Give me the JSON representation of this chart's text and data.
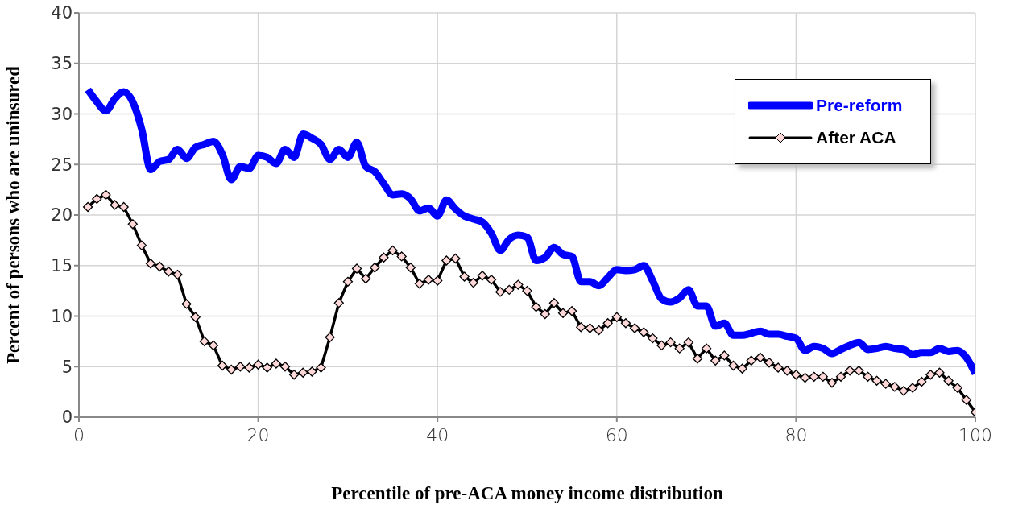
{
  "chart_data": {
    "type": "line",
    "xlabel": "Percentile of pre-ACA money income distribution",
    "ylabel": "Percent of persons who are uninsured",
    "x": [
      1,
      2,
      3,
      4,
      5,
      6,
      7,
      8,
      9,
      10,
      11,
      12,
      13,
      14,
      15,
      16,
      17,
      18,
      19,
      20,
      21,
      22,
      23,
      24,
      25,
      26,
      27,
      28,
      29,
      30,
      31,
      32,
      33,
      34,
      35,
      36,
      37,
      38,
      39,
      40,
      41,
      42,
      43,
      44,
      45,
      46,
      47,
      48,
      49,
      50,
      51,
      52,
      53,
      54,
      55,
      56,
      57,
      58,
      59,
      60,
      61,
      62,
      63,
      64,
      65,
      66,
      67,
      68,
      69,
      70,
      71,
      72,
      73,
      74,
      75,
      76,
      77,
      78,
      79,
      80,
      81,
      82,
      83,
      84,
      85,
      86,
      87,
      88,
      89,
      90,
      91,
      92,
      93,
      94,
      95,
      96,
      97,
      98,
      99,
      100
    ],
    "series": [
      {
        "name": "Pre-reform",
        "color": "#0000ff",
        "marker": "none",
        "values": [
          32.4,
          31.2,
          30.3,
          31.5,
          32.2,
          31.2,
          28.5,
          24.5,
          25.3,
          25.5,
          26.5,
          25.6,
          26.7,
          27.0,
          27.3,
          26.0,
          23.5,
          24.8,
          24.6,
          25.9,
          25.7,
          25.1,
          26.5,
          25.7,
          28.0,
          27.6,
          27.0,
          25.5,
          26.5,
          25.7,
          27.2,
          24.8,
          24.3,
          23.1,
          22.0,
          22.1,
          21.6,
          20.4,
          20.7,
          19.9,
          21.5,
          20.6,
          19.9,
          19.6,
          19.3,
          18.2,
          16.5,
          17.6,
          18.0,
          17.8,
          15.5,
          15.8,
          16.8,
          16.1,
          15.9,
          13.4,
          13.4,
          13.0,
          13.8,
          14.6,
          14.5,
          14.6,
          15.0,
          13.5,
          11.7,
          11.4,
          11.8,
          12.6,
          11.0,
          11.0,
          9.0,
          9.3,
          8.1,
          8.1,
          8.3,
          8.5,
          8.2,
          8.2,
          8.0,
          7.8,
          6.6,
          7.0,
          6.8,
          6.3,
          6.7,
          7.1,
          7.4,
          6.7,
          6.8,
          7.0,
          6.8,
          6.7,
          6.2,
          6.4,
          6.4,
          6.8,
          6.5,
          6.6,
          5.9,
          4.3
        ]
      },
      {
        "name": "After ACA",
        "color": "#000000",
        "marker": "diamond",
        "values": [
          20.8,
          21.6,
          22.0,
          21.0,
          20.8,
          19.1,
          17.0,
          15.2,
          14.9,
          14.4,
          14.1,
          11.2,
          9.9,
          7.5,
          7.1,
          5.1,
          4.7,
          5.0,
          4.9,
          5.2,
          4.9,
          5.3,
          5.0,
          4.2,
          4.4,
          4.5,
          4.9,
          7.9,
          11.3,
          13.4,
          14.7,
          13.7,
          14.8,
          15.8,
          16.5,
          15.9,
          14.8,
          13.2,
          13.6,
          13.5,
          15.5,
          15.7,
          13.9,
          13.3,
          14.0,
          13.6,
          12.4,
          12.6,
          13.1,
          12.5,
          10.9,
          10.2,
          11.3,
          10.3,
          10.5,
          8.9,
          8.8,
          8.6,
          9.3,
          9.9,
          9.3,
          8.8,
          8.4,
          7.8,
          7.1,
          7.4,
          6.8,
          7.4,
          5.8,
          6.8,
          5.6,
          6.1,
          5.1,
          4.8,
          5.6,
          5.9,
          5.4,
          4.9,
          4.6,
          4.2,
          3.9,
          4.0,
          4.0,
          3.4,
          4.0,
          4.6,
          4.6,
          4.0,
          3.6,
          3.3,
          3.0,
          2.6,
          2.9,
          3.5,
          4.2,
          4.4,
          3.6,
          2.9,
          1.7,
          0.5
        ]
      }
    ],
    "xlim": [
      0,
      100
    ],
    "xticks": [
      0,
      20,
      40,
      60,
      80,
      100
    ],
    "ylim": [
      0,
      40
    ],
    "yticks": [
      0,
      5,
      10,
      15,
      20,
      25,
      30,
      35,
      40
    ],
    "grid": true,
    "legend": "top right"
  }
}
